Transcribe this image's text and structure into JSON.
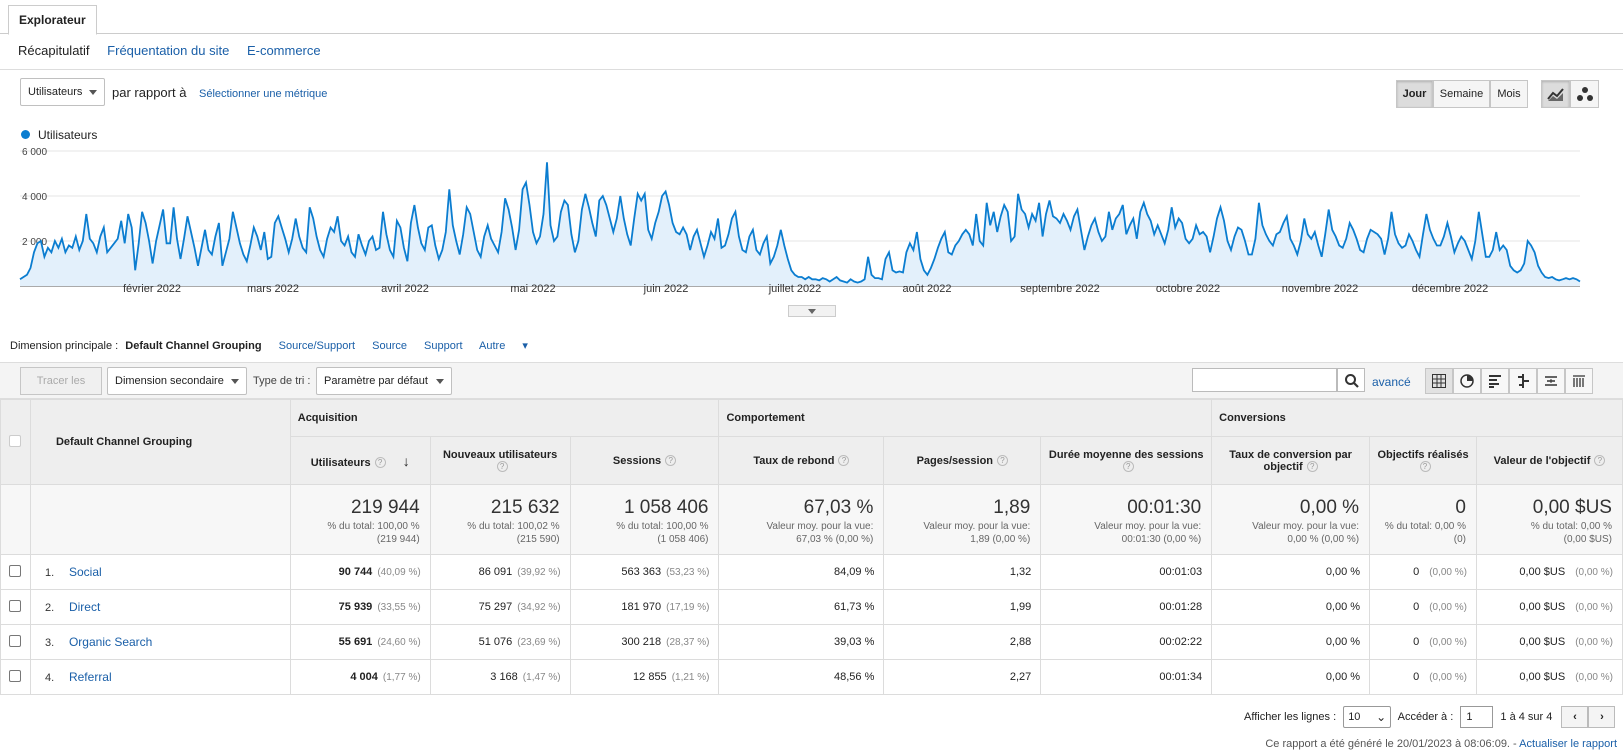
{
  "tabs": {
    "active": "Explorateur"
  },
  "subnav": [
    "Récapitulatif",
    "Fréquentation du site",
    "E-commerce"
  ],
  "controls": {
    "metric_select": "Utilisateurs",
    "compare_text": "par rapport à",
    "select_metric_link": "Sélectionner une métrique",
    "period_buttons": [
      "Jour",
      "Semaine",
      "Mois"
    ],
    "active_period": "Jour"
  },
  "legend": {
    "series_name": "Utilisateurs",
    "color": "#0b7dd0"
  },
  "chart_data": {
    "type": "line",
    "series": [
      {
        "name": "Utilisateurs",
        "values": [
          300,
          400,
          500,
          800,
          1500,
          1900,
          2000,
          1300,
          1700,
          1500,
          2000,
          1700,
          2100,
          1500,
          1800,
          1700,
          2200,
          1600,
          2000,
          3200,
          2100,
          1900,
          1500,
          2200,
          2600,
          1500,
          1700,
          1900,
          2100,
          2900,
          1900,
          3200,
          2600,
          700,
          1900,
          3300,
          2800,
          2000,
          1000,
          2000,
          2700,
          3400,
          1900,
          1900,
          3500,
          2100,
          1200,
          2100,
          3100,
          2400,
          1700,
          900,
          1700,
          2500,
          1600,
          1400,
          2200,
          2800,
          900,
          1500,
          2100,
          3300,
          2600,
          1900,
          1400,
          1100,
          1800,
          2600,
          2200,
          1600,
          2400,
          1200,
          1300,
          2800,
          3100,
          2600,
          2100,
          1500,
          2100,
          3000,
          2200,
          1700,
          1500,
          3500,
          3000,
          2200,
          1600,
          1300,
          2100,
          2600,
          2400,
          3100,
          2000,
          1800,
          2200,
          1500,
          1300,
          2300,
          1800,
          1400,
          2000,
          2200,
          1600,
          1700,
          3300,
          2300,
          1600,
          1300,
          2900,
          2600,
          1700,
          1100,
          2800,
          3600,
          2600,
          1900,
          1600,
          2600,
          2700,
          1800,
          1200,
          1600,
          2400,
          4300,
          2700,
          2000,
          1400,
          2300,
          3500,
          3200,
          2400,
          1600,
          1300,
          2200,
          2700,
          2100,
          1800,
          1500,
          2400,
          3900,
          3400,
          2600,
          1600,
          2500,
          4300,
          4600,
          3600,
          2400,
          1900,
          2200,
          3200,
          5500,
          2700,
          2000,
          2200,
          3300,
          3800,
          3600,
          2300,
          1500,
          2000,
          3400,
          4100,
          3500,
          2800,
          2200,
          3800,
          4000,
          3600,
          3000,
          2400,
          3000,
          4000,
          3000,
          2300,
          1800,
          3000,
          4100,
          3800,
          4100,
          2500,
          2100,
          2800,
          3300,
          4000,
          4200,
          3600,
          2800,
          2400,
          2300,
          2600,
          2300,
          1600,
          2200,
          2500,
          1900,
          1300,
          1800,
          2400,
          2100,
          3000,
          1700,
          1800,
          2300,
          3000,
          3300,
          2200,
          1600,
          1500,
          2200,
          2500,
          1600,
          1400,
          1900,
          2200,
          1000,
          1300,
          1800,
          2500,
          1800,
          1200,
          700,
          500,
          400,
          400,
          300,
          400,
          300,
          300,
          250,
          350,
          300,
          200,
          300,
          400,
          250,
          200,
          150,
          300,
          200,
          150,
          200,
          300,
          1300,
          500,
          350,
          350,
          300,
          1200,
          1500,
          700,
          600,
          650,
          600,
          1500,
          1900,
          1600,
          2400,
          1200,
          700,
          500,
          800,
          1200,
          1700,
          2100,
          2400,
          1500,
          1400,
          1800,
          2000,
          2300,
          2500,
          2300,
          1800,
          3200,
          2000,
          1800,
          3700,
          2700,
          3300,
          2400,
          3100,
          3600,
          3300,
          2000,
          2200,
          4100,
          3400,
          3200,
          2600,
          3200,
          2900,
          3700,
          2200,
          3200,
          3800,
          3100,
          3000,
          2800,
          3200,
          2900,
          2500,
          3100,
          3400,
          2500,
          1600,
          2200,
          2700,
          3000,
          2400,
          2000,
          2200,
          3300,
          2500,
          3000,
          3200,
          3600,
          2300,
          2700,
          3000,
          2100,
          3300,
          3700,
          3200,
          2900,
          2300,
          2700,
          2300,
          1900,
          2500,
          3500,
          2600,
          3000,
          2800,
          2100,
          1900,
          2100,
          2700,
          2300,
          2400,
          2200,
          1500,
          2200,
          3000,
          3500,
          2900,
          2000,
          1600,
          2200,
          2600,
          2500,
          2000,
          1400,
          1400,
          2100,
          3700,
          2700,
          2300,
          2000,
          1800,
          2300,
          2400,
          2800,
          3100,
          2100,
          1800,
          1400,
          2000,
          3000,
          2300,
          2100,
          2400,
          1800,
          1300,
          2300,
          3400,
          2500,
          2200,
          1800,
          1700,
          2100,
          2800,
          2500,
          2100,
          1600,
          1500,
          2100,
          2500,
          2400,
          2300,
          2100,
          1400,
          2100,
          3300,
          2300,
          1900,
          1700,
          1800,
          2300,
          2000,
          1600,
          1300,
          2300,
          3200,
          2500,
          2100,
          1800,
          1800,
          2200,
          2800,
          2200,
          1500,
          1900,
          2200,
          2000,
          1600,
          1200,
          2000,
          3300,
          2300,
          1300,
          1300,
          1600,
          2400,
          1600,
          1800,
          1600,
          900,
          700,
          600,
          700,
          1000,
          2000,
          1800,
          1500,
          900,
          600,
          400,
          350,
          400,
          300,
          250,
          300,
          350,
          300,
          350,
          300,
          200
        ]
      }
    ],
    "y_ticks": [
      "2 000",
      "4 000",
      "6 000"
    ],
    "ylim": [
      0,
      6000
    ],
    "month_labels": [
      "février 2022",
      "mars 2022",
      "avril 2022",
      "mai 2022",
      "juin 2022",
      "juillet 2022",
      "août 2022",
      "septembre 2022",
      "octobre 2022",
      "novembre 2022",
      "décembre 2022"
    ],
    "grid": true
  },
  "dimension": {
    "label": "Dimension principale :",
    "active": "Default Channel Grouping",
    "links": [
      "Source/Support",
      "Source",
      "Support"
    ],
    "other": "Autre"
  },
  "toolbar": {
    "plot_rows": "Tracer les lignes",
    "secondary_dim": "Dimension secondaire",
    "sort_label": "Type de tri :",
    "sort_value": "Paramètre par défaut",
    "advanced": "avancé",
    "search_value": ""
  },
  "table": {
    "dim_header": "Default Channel Grouping",
    "groups": [
      "Acquisition",
      "Comportement",
      "Conversions"
    ],
    "columns": [
      "Utilisateurs",
      "Nouveaux utilisateurs",
      "Sessions",
      "Taux de rebond",
      "Pages/session",
      "Durée moyenne des sessions",
      "Taux de conversion par objectif",
      "Objectifs réalisés",
      "Valeur de l'objectif"
    ],
    "totals": [
      {
        "big": "219 944",
        "l1": "% du total: 100,00 %",
        "l2": "(219 944)"
      },
      {
        "big": "215 632",
        "l1": "% du total: 100,02 %",
        "l2": "(215 590)"
      },
      {
        "big": "1 058 406",
        "l1": "% du total: 100,00 %",
        "l2": "(1 058 406)"
      },
      {
        "big": "67,03 %",
        "l1": "Valeur moy. pour la vue:",
        "l2": "67,03 % (0,00 %)"
      },
      {
        "big": "1,89",
        "l1": "Valeur moy. pour la vue:",
        "l2": "1,89 (0,00 %)"
      },
      {
        "big": "00:01:30",
        "l1": "Valeur moy. pour la vue:",
        "l2": "00:01:30 (0,00 %)"
      },
      {
        "big": "0,00 %",
        "l1": "Valeur moy. pour la vue:",
        "l2": "0,00 % (0,00 %)"
      },
      {
        "big": "0",
        "l1": "% du total: 0,00 %",
        "l2": "(0)"
      },
      {
        "big": "0,00 $US",
        "l1": "% du total: 0,00 %",
        "l2": "(0,00 $US)"
      }
    ],
    "rows": [
      {
        "idx": "1.",
        "name": "Social",
        "users": "90 744",
        "users_pct": "(40,09 %)",
        "new": "86 091",
        "new_pct": "(39,92 %)",
        "sessions": "563 363",
        "sessions_pct": "(53,23 %)",
        "bounce": "84,09 %",
        "pages": "1,32",
        "duration": "00:01:03",
        "conv": "0,00 %",
        "goals": "0",
        "goals_pct": "(0,00 %)",
        "value": "0,00 $US",
        "value_pct": "(0,00 %)"
      },
      {
        "idx": "2.",
        "name": "Direct",
        "users": "75 939",
        "users_pct": "(33,55 %)",
        "new": "75 297",
        "new_pct": "(34,92 %)",
        "sessions": "181 970",
        "sessions_pct": "(17,19 %)",
        "bounce": "61,73 %",
        "pages": "1,99",
        "duration": "00:01:28",
        "conv": "0,00 %",
        "goals": "0",
        "goals_pct": "(0,00 %)",
        "value": "0,00 $US",
        "value_pct": "(0,00 %)"
      },
      {
        "idx": "3.",
        "name": "Organic Search",
        "users": "55 691",
        "users_pct": "(24,60 %)",
        "new": "51 076",
        "new_pct": "(23,69 %)",
        "sessions": "300 218",
        "sessions_pct": "(28,37 %)",
        "bounce": "39,03 %",
        "pages": "2,88",
        "duration": "00:02:22",
        "conv": "0,00 %",
        "goals": "0",
        "goals_pct": "(0,00 %)",
        "value": "0,00 $US",
        "value_pct": "(0,00 %)"
      },
      {
        "idx": "4.",
        "name": "Referral",
        "users": "4 004",
        "users_pct": "(1,77 %)",
        "new": "3 168",
        "new_pct": "(1,47 %)",
        "sessions": "12 855",
        "sessions_pct": "(1,21 %)",
        "bounce": "48,56 %",
        "pages": "2,27",
        "duration": "00:01:34",
        "conv": "0,00 %",
        "goals": "0",
        "goals_pct": "(0,00 %)",
        "value": "0,00 $US",
        "value_pct": "(0,00 %)"
      }
    ]
  },
  "pagination": {
    "rows_label": "Afficher les lignes :",
    "rows_value": "10",
    "goto_label": "Accéder à :",
    "goto_value": "1",
    "range": "1 à 4 sur 4"
  },
  "footer": {
    "generated": "Ce rapport a été généré le 20/01/2023 à 08:06:09. -",
    "refresh": "Actualiser le rapport"
  }
}
